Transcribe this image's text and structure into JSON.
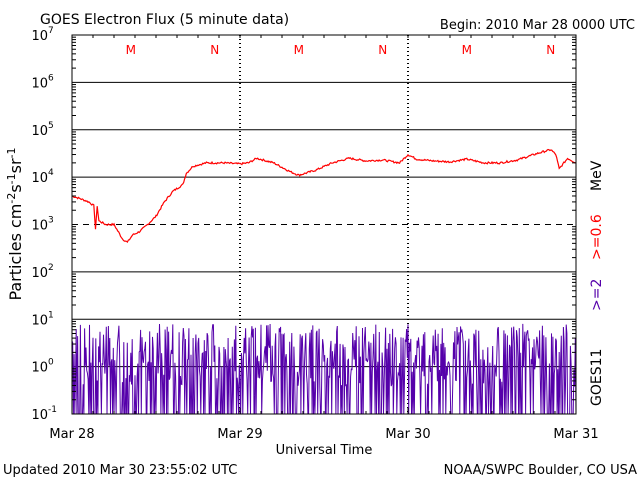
{
  "chart_data": {
    "type": "line",
    "title": "GOES Electron Flux (5 minute data)",
    "begin_label": "Begin: 2010 Mar 28 0000 UTC",
    "xlabel": "Universal Time",
    "ylabel_prefix": "Particles cm",
    "ylabel_unit_parts": [
      "-2",
      "s",
      "-1",
      "sr",
      "-1"
    ],
    "x_ticks": [
      {
        "label": "Mar 28",
        "day": 0
      },
      {
        "label": "Mar 29",
        "day": 1
      },
      {
        "label": "Mar 30",
        "day": 2
      },
      {
        "label": "Mar 31",
        "day": 3
      }
    ],
    "xlim_days": [
      0,
      3
    ],
    "y_scale": "log",
    "y_exponents": [
      -1,
      0,
      1,
      2,
      3,
      4,
      5,
      6,
      7
    ],
    "ylim": [
      0.1,
      10000000
    ],
    "threshold": 1000,
    "day_night_markers": [
      {
        "label": "M",
        "day": 0.35
      },
      {
        "label": "N",
        "day": 0.85
      },
      {
        "label": "M",
        "day": 1.35
      },
      {
        "label": "N",
        "day": 1.85
      },
      {
        "label": "M",
        "day": 2.35
      },
      {
        "label": "N",
        "day": 2.85
      }
    ],
    "right_labels": {
      "mev": "MeV",
      "ch1": ">=0.6",
      "ch2": ">=2",
      "satellite": "GOES11"
    },
    "series": [
      {
        "name": ">=0.6",
        "color": "#ff0000",
        "x": [
          0,
          0.05,
          0.1,
          0.13,
          0.14,
          0.15,
          0.16,
          0.2,
          0.25,
          0.3,
          0.33,
          0.36,
          0.4,
          0.45,
          0.5,
          0.55,
          0.6,
          0.66,
          0.68,
          0.72,
          0.8,
          0.9,
          1.0,
          1.05,
          1.1,
          1.2,
          1.3,
          1.35,
          1.45,
          1.55,
          1.65,
          1.75,
          1.85,
          1.95,
          2.0,
          2.05,
          2.15,
          2.25,
          2.35,
          2.45,
          2.55,
          2.65,
          2.75,
          2.8,
          2.85,
          2.88,
          2.9,
          2.95,
          3.0
        ],
        "values": [
          4000,
          3500,
          3000,
          2500,
          800,
          2500,
          1200,
          1000,
          1000,
          500,
          420,
          600,
          700,
          1000,
          1500,
          3000,
          5000,
          7000,
          12000,
          17000,
          20000,
          20000,
          19000,
          20000,
          25000,
          20000,
          13000,
          11000,
          14000,
          20000,
          25000,
          22000,
          23000,
          20000,
          30000,
          24000,
          22000,
          21000,
          24000,
          20000,
          20000,
          23000,
          30000,
          34000,
          38000,
          30000,
          15000,
          25000,
          20000
        ]
      },
      {
        "name": ">=2",
        "color": "#5500aa",
        "y_range": [
          0.1,
          8
        ],
        "noise": true
      }
    ]
  },
  "footer": {
    "updated": "Updated 2010 Mar 30 23:55:02 UTC",
    "source": "NOAA/SWPC Boulder, CO USA"
  }
}
